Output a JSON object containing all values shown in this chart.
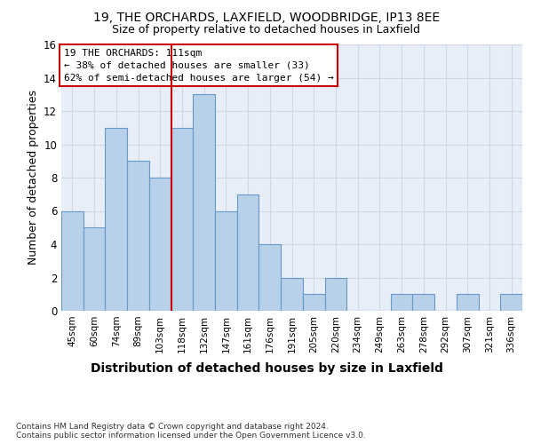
{
  "title1": "19, THE ORCHARDS, LAXFIELD, WOODBRIDGE, IP13 8EE",
  "title2": "Size of property relative to detached houses in Laxfield",
  "xlabel": "Distribution of detached houses by size in Laxfield",
  "ylabel": "Number of detached properties",
  "categories": [
    "45sqm",
    "60sqm",
    "74sqm",
    "89sqm",
    "103sqm",
    "118sqm",
    "132sqm",
    "147sqm",
    "161sqm",
    "176sqm",
    "191sqm",
    "205sqm",
    "220sqm",
    "234sqm",
    "249sqm",
    "263sqm",
    "278sqm",
    "292sqm",
    "307sqm",
    "321sqm",
    "336sqm"
  ],
  "values": [
    6,
    5,
    11,
    9,
    8,
    11,
    13,
    6,
    7,
    4,
    2,
    1,
    2,
    0,
    0,
    1,
    1,
    0,
    1,
    0,
    1
  ],
  "bar_color": "#b8d0e8",
  "bar_edge_color": "#6699cc",
  "vline_x_index": 5,
  "vline_color": "#cc0000",
  "annotation_text": "19 THE ORCHARDS: 111sqm\n← 38% of detached houses are smaller (33)\n62% of semi-detached houses are larger (54) →",
  "annotation_box_color": "#ffffff",
  "annotation_box_edge_color": "#cc0000",
  "ylim": [
    0,
    16
  ],
  "yticks": [
    0,
    2,
    4,
    6,
    8,
    10,
    12,
    14,
    16
  ],
  "footer_text": "Contains HM Land Registry data © Crown copyright and database right 2024.\nContains public sector information licensed under the Open Government Licence v3.0.",
  "background_color": "#e8eef8",
  "grid_color": "#d0d8e8",
  "title1_fontsize": 10,
  "title2_fontsize": 9,
  "xlabel_fontsize": 10,
  "ylabel_fontsize": 9,
  "annotation_fontsize": 8,
  "footer_fontsize": 6.5
}
